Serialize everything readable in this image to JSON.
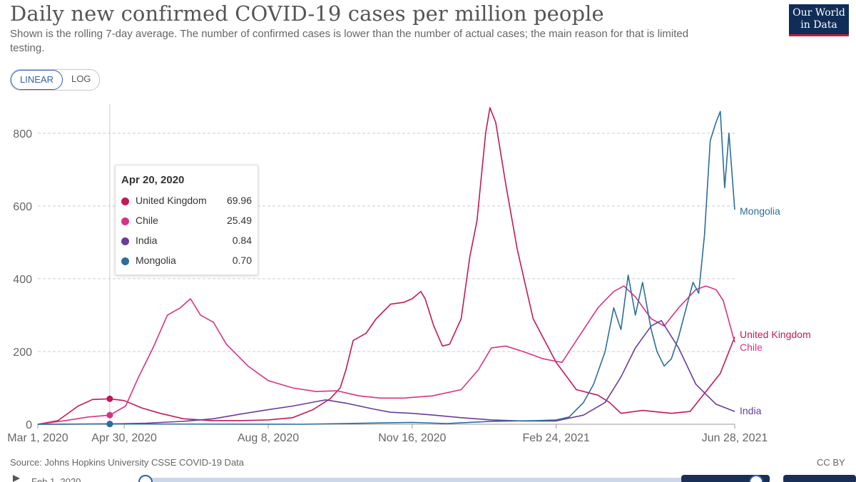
{
  "header": {
    "title": "Daily new confirmed COVID-19 cases per million people",
    "subtitle": "Shown is the rolling 7-day average. The number of confirmed cases is lower than the number of actual cases; the main reason for that is limited testing.",
    "logo_line1": "Our World",
    "logo_line2": "in Data"
  },
  "controls": {
    "linear_label": "LINEAR",
    "log_label": "LOG",
    "selected": "LINEAR"
  },
  "tooltip": {
    "date": "Apr 20, 2020",
    "rows": [
      {
        "name": "United Kingdom",
        "value": "69.96",
        "color": "#c2185b"
      },
      {
        "name": "Chile",
        "value": "25.49",
        "color": "#d63384"
      },
      {
        "name": "India",
        "value": "0.84",
        "color": "#6a3d9a"
      },
      {
        "name": "Mongolia",
        "value": "0.70",
        "color": "#2c6e9b"
      }
    ]
  },
  "footer": {
    "source": "Source: Johns Hopkins University CSSE COVID-19 Data",
    "license": "CC BY",
    "timeline_start": "Feb 1, 2020"
  },
  "chart_data": {
    "type": "line",
    "title": "Daily new confirmed COVID-19 cases per million people",
    "xlabel": "",
    "ylabel": "",
    "ylim": [
      0,
      880
    ],
    "xlim": [
      "2020-03-01",
      "2021-06-28"
    ],
    "x_ticks": [
      "Mar 1, 2020",
      "Apr 30, 2020",
      "Aug 8, 2020",
      "Nov 16, 2020",
      "Feb 24, 2021",
      "Jun 28, 2021"
    ],
    "y_ticks": [
      0,
      200,
      400,
      600,
      800
    ],
    "grid": "horizontal dashed",
    "hover_date": "2020-04-20",
    "series": [
      {
        "name": "United Kingdom",
        "color": "#c2185b",
        "points": [
          [
            "2020-03-01",
            0
          ],
          [
            "2020-03-15",
            10
          ],
          [
            "2020-03-29",
            50
          ],
          [
            "2020-04-08",
            68
          ],
          [
            "2020-04-20",
            70
          ],
          [
            "2020-04-30",
            65
          ],
          [
            "2020-05-12",
            45
          ],
          [
            "2020-05-25",
            30
          ],
          [
            "2020-06-10",
            15
          ],
          [
            "2020-06-30",
            10
          ],
          [
            "2020-07-20",
            10
          ],
          [
            "2020-08-08",
            12
          ],
          [
            "2020-08-25",
            18
          ],
          [
            "2020-09-08",
            40
          ],
          [
            "2020-09-20",
            70
          ],
          [
            "2020-09-27",
            100
          ],
          [
            "2020-10-01",
            150
          ],
          [
            "2020-10-06",
            230
          ],
          [
            "2020-10-15",
            250
          ],
          [
            "2020-10-22",
            290
          ],
          [
            "2020-11-01",
            330
          ],
          [
            "2020-11-10",
            335
          ],
          [
            "2020-11-16",
            345
          ],
          [
            "2020-11-22",
            365
          ],
          [
            "2020-11-25",
            345
          ],
          [
            "2020-12-01",
            270
          ],
          [
            "2020-12-07",
            215
          ],
          [
            "2020-12-12",
            220
          ],
          [
            "2020-12-20",
            290
          ],
          [
            "2020-12-26",
            460
          ],
          [
            "2020-12-31",
            560
          ],
          [
            "2021-01-06",
            800
          ],
          [
            "2021-01-09",
            870
          ],
          [
            "2021-01-13",
            830
          ],
          [
            "2021-01-20",
            660
          ],
          [
            "2021-01-28",
            480
          ],
          [
            "2021-02-08",
            290
          ],
          [
            "2021-02-24",
            170
          ],
          [
            "2021-03-10",
            95
          ],
          [
            "2021-03-25",
            80
          ],
          [
            "2021-04-02",
            60
          ],
          [
            "2021-04-10",
            30
          ],
          [
            "2021-04-25",
            38
          ],
          [
            "2021-05-15",
            30
          ],
          [
            "2021-05-28",
            35
          ],
          [
            "2021-06-08",
            90
          ],
          [
            "2021-06-18",
            140
          ],
          [
            "2021-06-28",
            240
          ]
        ]
      },
      {
        "name": "Chile",
        "color": "#d63384",
        "points": [
          [
            "2020-03-01",
            0
          ],
          [
            "2020-03-20",
            10
          ],
          [
            "2020-04-05",
            20
          ],
          [
            "2020-04-20",
            25
          ],
          [
            "2020-05-01",
            50
          ],
          [
            "2020-05-10",
            130
          ],
          [
            "2020-05-20",
            210
          ],
          [
            "2020-05-30",
            300
          ],
          [
            "2020-06-08",
            320
          ],
          [
            "2020-06-15",
            345
          ],
          [
            "2020-06-22",
            300
          ],
          [
            "2020-07-01",
            280
          ],
          [
            "2020-07-10",
            220
          ],
          [
            "2020-07-25",
            160
          ],
          [
            "2020-08-08",
            120
          ],
          [
            "2020-08-25",
            100
          ],
          [
            "2020-09-10",
            90
          ],
          [
            "2020-09-25",
            92
          ],
          [
            "2020-10-10",
            78
          ],
          [
            "2020-10-25",
            72
          ],
          [
            "2020-11-10",
            72
          ],
          [
            "2020-11-30",
            78
          ],
          [
            "2020-12-20",
            95
          ],
          [
            "2021-01-01",
            150
          ],
          [
            "2021-01-10",
            210
          ],
          [
            "2021-01-20",
            215
          ],
          [
            "2021-02-01",
            200
          ],
          [
            "2021-02-15",
            180
          ],
          [
            "2021-02-28",
            170
          ],
          [
            "2021-03-10",
            230
          ],
          [
            "2021-03-25",
            320
          ],
          [
            "2021-04-05",
            365
          ],
          [
            "2021-04-12",
            380
          ],
          [
            "2021-04-20",
            350
          ],
          [
            "2021-05-01",
            290
          ],
          [
            "2021-05-10",
            270
          ],
          [
            "2021-05-20",
            320
          ],
          [
            "2021-06-01",
            370
          ],
          [
            "2021-06-08",
            380
          ],
          [
            "2021-06-15",
            370
          ],
          [
            "2021-06-20",
            340
          ],
          [
            "2021-06-28",
            225
          ]
        ]
      },
      {
        "name": "India",
        "color": "#6a3d9a",
        "points": [
          [
            "2020-03-01",
            0
          ],
          [
            "2020-04-20",
            0.84
          ],
          [
            "2020-05-15",
            3
          ],
          [
            "2020-06-10",
            8
          ],
          [
            "2020-07-01",
            15
          ],
          [
            "2020-07-20",
            28
          ],
          [
            "2020-08-08",
            40
          ],
          [
            "2020-08-25",
            50
          ],
          [
            "2020-09-10",
            62
          ],
          [
            "2020-09-17",
            67
          ],
          [
            "2020-10-01",
            58
          ],
          [
            "2020-10-20",
            42
          ],
          [
            "2020-11-01",
            33
          ],
          [
            "2020-11-16",
            30
          ],
          [
            "2020-12-01",
            25
          ],
          [
            "2020-12-20",
            18
          ],
          [
            "2021-01-10",
            12
          ],
          [
            "2021-02-01",
            9
          ],
          [
            "2021-02-24",
            9
          ],
          [
            "2021-03-15",
            25
          ],
          [
            "2021-03-30",
            60
          ],
          [
            "2021-04-10",
            130
          ],
          [
            "2021-04-20",
            210
          ],
          [
            "2021-05-01",
            270
          ],
          [
            "2021-05-08",
            285
          ],
          [
            "2021-05-20",
            210
          ],
          [
            "2021-06-01",
            110
          ],
          [
            "2021-06-15",
            55
          ],
          [
            "2021-06-28",
            35
          ]
        ]
      },
      {
        "name": "Mongolia",
        "color": "#2c6e9b",
        "points": [
          [
            "2020-03-01",
            0
          ],
          [
            "2020-04-20",
            0.7
          ],
          [
            "2020-09-01",
            0
          ],
          [
            "2020-11-16",
            5
          ],
          [
            "2020-12-10",
            2
          ],
          [
            "2021-01-10",
            8
          ],
          [
            "2021-02-10",
            10
          ],
          [
            "2021-02-24",
            12
          ],
          [
            "2021-03-05",
            20
          ],
          [
            "2021-03-15",
            60
          ],
          [
            "2021-03-22",
            110
          ],
          [
            "2021-03-30",
            200
          ],
          [
            "2021-04-05",
            320
          ],
          [
            "2021-04-10",
            260
          ],
          [
            "2021-04-15",
            410
          ],
          [
            "2021-04-20",
            300
          ],
          [
            "2021-04-25",
            390
          ],
          [
            "2021-05-01",
            260
          ],
          [
            "2021-05-05",
            200
          ],
          [
            "2021-05-10",
            160
          ],
          [
            "2021-05-15",
            180
          ],
          [
            "2021-05-20",
            240
          ],
          [
            "2021-05-26",
            330
          ],
          [
            "2021-05-30",
            390
          ],
          [
            "2021-06-03",
            360
          ],
          [
            "2021-06-07",
            520
          ],
          [
            "2021-06-11",
            780
          ],
          [
            "2021-06-15",
            830
          ],
          [
            "2021-06-18",
            860
          ],
          [
            "2021-06-21",
            650
          ],
          [
            "2021-06-24",
            800
          ],
          [
            "2021-06-28",
            590
          ]
        ]
      }
    ]
  }
}
